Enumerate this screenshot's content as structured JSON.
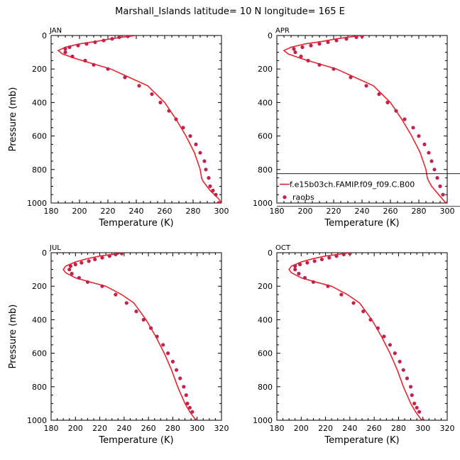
{
  "title": "Marshall_Islands  latitude= 10 N longitude= 165 E",
  "colors": {
    "model": "#e8262a",
    "obs": "#c0234f",
    "frame": "#000000"
  },
  "legend": {
    "model_label": "f.e15b03ch.FAMIP.f09_f09.C.B00",
    "obs_label": "raobs",
    "panel": "APR",
    "placement": "bottom-right"
  },
  "chart_data": [
    {
      "type": "line",
      "panel": "JAN",
      "xlabel": "Temperature (K)",
      "ylabel": "Pressure (mb)",
      "xlim": [
        180,
        300
      ],
      "ylim": [
        1000,
        0
      ],
      "xticks": [
        180,
        200,
        220,
        240,
        260,
        280,
        300
      ],
      "yticks": [
        0,
        200,
        400,
        600,
        800,
        1000
      ],
      "series": [
        {
          "kind": "model",
          "x": [
            240,
            230,
            222,
            212,
            200,
            190,
            185,
            188,
            198,
            210,
            222,
            235,
            248,
            260,
            268,
            275,
            281,
            285,
            286,
            287,
            292,
            298,
            300
          ],
          "y": [
            0,
            10,
            20,
            35,
            50,
            70,
            90,
            110,
            140,
            170,
            200,
            250,
            300,
            400,
            500,
            600,
            700,
            800,
            850,
            870,
            925,
            975,
            1000
          ]
        },
        {
          "kind": "obs",
          "x": [
            234,
            228,
            223,
            217,
            211,
            205,
            199,
            193,
            190,
            190,
            195,
            204,
            210,
            220,
            232,
            242,
            251,
            257,
            263,
            268,
            273,
            278,
            282,
            285,
            288,
            289,
            291,
            292,
            294,
            296,
            298
          ],
          "y": [
            5,
            10,
            20,
            30,
            40,
            50,
            60,
            70,
            80,
            100,
            125,
            150,
            175,
            200,
            250,
            300,
            350,
            400,
            450,
            500,
            550,
            600,
            650,
            700,
            750,
            800,
            850,
            900,
            925,
            950,
            1000
          ]
        }
      ]
    },
    {
      "type": "line",
      "panel": "APR",
      "xlabel": "Temperature (K)",
      "ylabel": "",
      "xlim": [
        180,
        300
      ],
      "ylim": [
        1000,
        0
      ],
      "xticks": [
        180,
        200,
        220,
        240,
        260,
        280,
        300
      ],
      "yticks": [
        0,
        200,
        400,
        600,
        800,
        1000
      ],
      "series": [
        {
          "kind": "model",
          "x": [
            240,
            230,
            222,
            212,
            200,
            190,
            185,
            188,
            198,
            210,
            222,
            235,
            248,
            260,
            268,
            275,
            281,
            285,
            286,
            287,
            289,
            294,
            299
          ],
          "y": [
            0,
            10,
            20,
            35,
            50,
            70,
            90,
            110,
            140,
            170,
            200,
            250,
            300,
            400,
            500,
            600,
            700,
            800,
            850,
            870,
            900,
            950,
            1000
          ]
        },
        {
          "kind": "obs",
          "x": [
            240,
            236,
            229,
            222,
            216,
            210,
            204,
            198,
            192,
            193,
            197,
            202,
            210,
            220,
            232,
            243,
            252,
            258,
            264,
            270,
            276,
            280,
            284,
            287,
            289,
            291,
            293,
            295,
            297,
            300
          ],
          "y": [
            5,
            10,
            20,
            30,
            40,
            50,
            60,
            70,
            80,
            100,
            125,
            150,
            175,
            200,
            250,
            300,
            350,
            400,
            450,
            500,
            550,
            600,
            650,
            700,
            750,
            800,
            850,
            900,
            950,
            1000
          ]
        }
      ]
    },
    {
      "type": "line",
      "panel": "JUL",
      "xlabel": "Temperature (K)",
      "ylabel": "Pressure (mb)",
      "xlim": [
        180,
        320
      ],
      "ylim": [
        1000,
        0
      ],
      "xticks": [
        180,
        200,
        220,
        240,
        260,
        280,
        300,
        320
      ],
      "yticks": [
        0,
        200,
        400,
        600,
        800,
        1000
      ],
      "series": [
        {
          "kind": "model",
          "x": [
            240,
            230,
            220,
            210,
            200,
            192,
            190,
            192,
            200,
            212,
            225,
            238,
            248,
            258,
            266,
            273,
            279,
            284,
            287,
            290,
            294,
            297,
            299
          ],
          "y": [
            0,
            10,
            20,
            35,
            55,
            80,
            100,
            120,
            150,
            175,
            200,
            250,
            300,
            400,
            500,
            600,
            700,
            800,
            850,
            900,
            950,
            980,
            1000
          ]
        },
        {
          "kind": "obs",
          "x": [
            238,
            233,
            228,
            222,
            216,
            211,
            205,
            200,
            196,
            195,
            197,
            203,
            210,
            222,
            233,
            242,
            250,
            256,
            262,
            267,
            272,
            276,
            280,
            283,
            286,
            289,
            291,
            292,
            294,
            296,
            299
          ],
          "y": [
            5,
            10,
            20,
            30,
            40,
            50,
            60,
            70,
            80,
            100,
            125,
            150,
            175,
            200,
            250,
            300,
            350,
            400,
            450,
            500,
            550,
            600,
            650,
            700,
            750,
            800,
            850,
            900,
            925,
            950,
            1000
          ]
        }
      ]
    },
    {
      "type": "line",
      "panel": "OCT",
      "xlabel": "Temperature (K)",
      "ylabel": "",
      "xlim": [
        180,
        320
      ],
      "ylim": [
        1000,
        0
      ],
      "xticks": [
        180,
        200,
        220,
        240,
        260,
        280,
        300,
        320
      ],
      "yticks": [
        0,
        200,
        400,
        600,
        800,
        1000
      ],
      "series": [
        {
          "kind": "model",
          "x": [
            240,
            230,
            220,
            210,
            200,
            192,
            190,
            192,
            200,
            212,
            225,
            238,
            248,
            258,
            266,
            273,
            279,
            284,
            287,
            290,
            294,
            297,
            299
          ],
          "y": [
            0,
            10,
            20,
            35,
            55,
            80,
            100,
            120,
            150,
            175,
            200,
            250,
            300,
            400,
            500,
            600,
            700,
            800,
            850,
            900,
            950,
            980,
            1000
          ]
        },
        {
          "kind": "obs",
          "x": [
            240,
            235,
            229,
            223,
            217,
            211,
            205,
            199,
            195,
            195,
            198,
            203,
            210,
            222,
            233,
            243,
            251,
            257,
            263,
            268,
            273,
            277,
            281,
            284,
            287,
            290,
            291,
            293,
            295,
            297,
            300
          ],
          "y": [
            5,
            10,
            20,
            30,
            40,
            50,
            60,
            70,
            80,
            100,
            125,
            150,
            175,
            200,
            250,
            300,
            350,
            400,
            450,
            500,
            550,
            600,
            650,
            700,
            750,
            800,
            850,
            900,
            925,
            950,
            1000
          ]
        }
      ]
    }
  ]
}
